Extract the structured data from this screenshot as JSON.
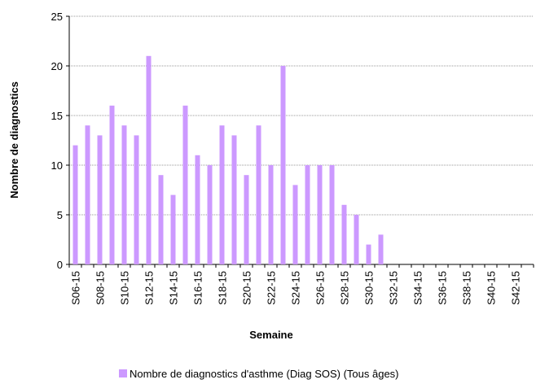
{
  "chart_data": {
    "type": "bar",
    "x_label": "Semaine",
    "y_label": "Nombre de diagnostics",
    "categories": [
      "S06-15",
      null,
      "S08-15",
      null,
      "S10-15",
      null,
      "S12-15",
      null,
      "S14-15",
      null,
      "S16-15",
      null,
      "S18-15",
      null,
      "S20-15",
      null,
      "S22-15",
      null,
      "S24-15",
      null,
      "S26-15",
      null,
      "S28-15",
      null,
      "S30-15",
      null,
      "S32-15",
      null,
      "S34-15",
      null,
      "S36-15",
      null,
      "S38-15",
      null,
      "S40-15",
      null,
      "S42-15",
      null
    ],
    "series": [
      {
        "name": "Nombre de diagnostics d'asthme (Diag SOS) (Tous âges)",
        "color": "#cc99ff",
        "values": [
          12,
          14,
          13,
          16,
          14,
          13,
          21,
          9,
          7,
          16,
          11,
          10,
          14,
          13,
          9,
          14,
          10,
          20,
          8,
          10,
          10,
          10,
          6,
          5,
          2,
          3,
          null,
          null,
          null,
          null,
          null,
          null,
          null,
          null,
          null,
          null,
          null,
          null
        ]
      }
    ],
    "ylim": [
      0,
      25
    ],
    "yticks": [
      0,
      5,
      10,
      15,
      20,
      25
    ],
    "grid": true,
    "legend": "bottom"
  }
}
